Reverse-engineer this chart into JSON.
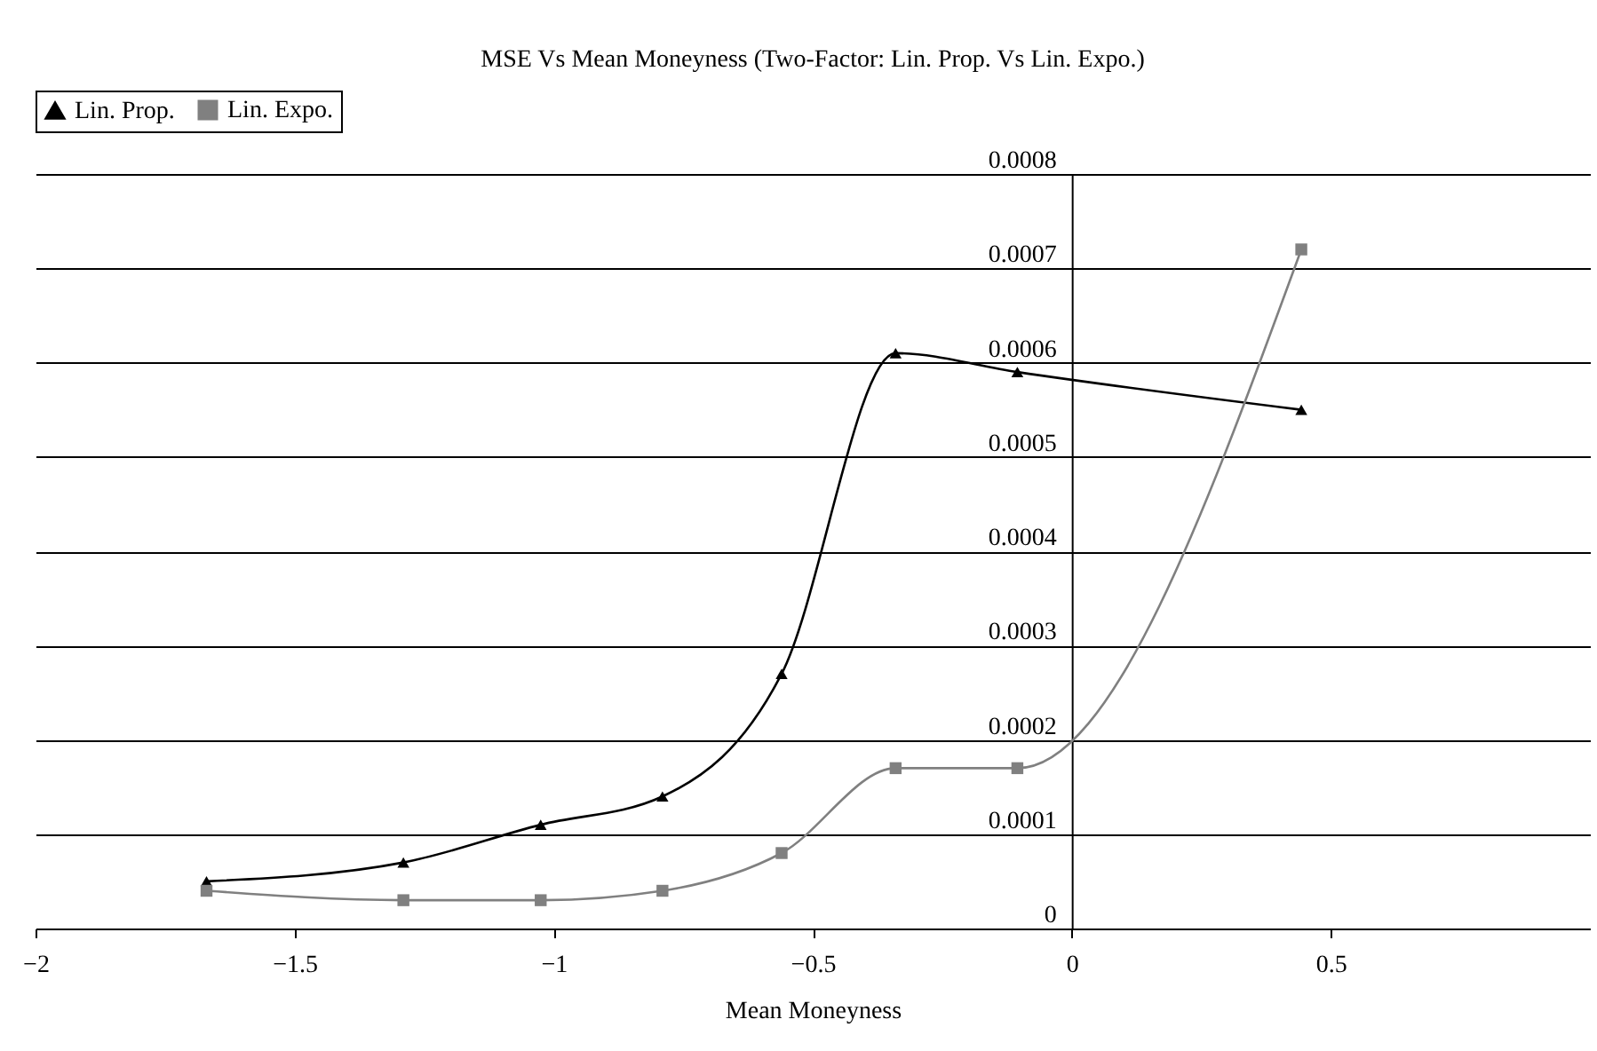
{
  "chart_data": {
    "type": "line",
    "title": "MSE Vs Mean Moneyness (Two-Factor: Lin. Prop. Vs Lin. Expo.)",
    "xlabel": "Mean Moneyness",
    "x": [
      -1.67,
      -1.29,
      -1.025,
      -0.79,
      -0.56,
      -0.34,
      -0.105,
      0.443
    ],
    "series": [
      {
        "name": "Lin. Prop.",
        "color": "#000000",
        "marker": "triangle",
        "values": [
          5e-05,
          7e-05,
          0.00011,
          0.00014,
          0.00027,
          0.00061,
          0.00059,
          0.00055
        ]
      },
      {
        "name": "Lin. Expo.",
        "color": "#808080",
        "marker": "square",
        "values": [
          4e-05,
          3e-05,
          3e-05,
          4e-05,
          8e-05,
          0.00017,
          0.00017,
          0.00072
        ]
      }
    ],
    "xlim": [
      -2,
      1
    ],
    "xticks": [
      -2,
      -1.5,
      -1,
      -0.5,
      0,
      0.5
    ],
    "ylim": [
      0,
      0.0008
    ],
    "yticks": [
      0,
      0.0001,
      0.0002,
      0.0003,
      0.0004,
      0.0005,
      0.0006,
      0.0007,
      0.0008
    ],
    "grid": "y",
    "legend": "top"
  }
}
